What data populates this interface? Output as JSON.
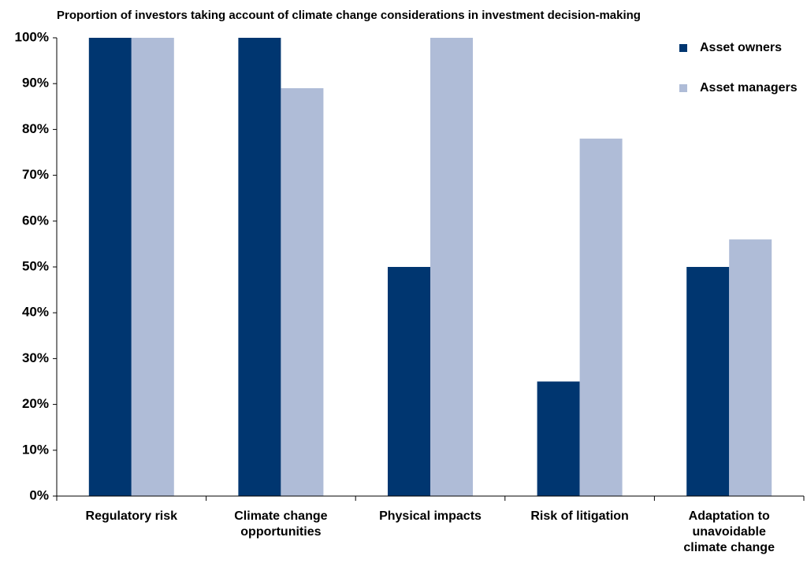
{
  "chart_data": {
    "type": "bar",
    "title": "Proportion of investors taking account of climate change considerations in investment decision-making",
    "categories": [
      "Regulatory risk",
      "Climate change opportunities",
      "Physical impacts",
      "Risk of litigation",
      "Adaptation to unavoidable climate change"
    ],
    "series": [
      {
        "name": "Asset owners",
        "color": "#003670",
        "values": [
          100,
          100,
          50,
          25,
          50
        ]
      },
      {
        "name": "Asset managers",
        "color": "#afbcd7",
        "values": [
          100,
          89,
          100,
          78,
          56
        ]
      }
    ],
    "ylim": [
      0,
      100
    ],
    "yticks": [
      {
        "value": 0,
        "label": "0%"
      },
      {
        "value": 10,
        "label": "10%"
      },
      {
        "value": 20,
        "label": "20%"
      },
      {
        "value": 30,
        "label": "30%"
      },
      {
        "value": 40,
        "label": "40%"
      },
      {
        "value": 50,
        "label": "50%"
      },
      {
        "value": 60,
        "label": "60%"
      },
      {
        "value": 70,
        "label": "70%"
      },
      {
        "value": 80,
        "label": "80%"
      },
      {
        "value": 90,
        "label": "90%"
      },
      {
        "value": 100,
        "label": "100%"
      }
    ],
    "grid": false,
    "legend": "upper right"
  }
}
